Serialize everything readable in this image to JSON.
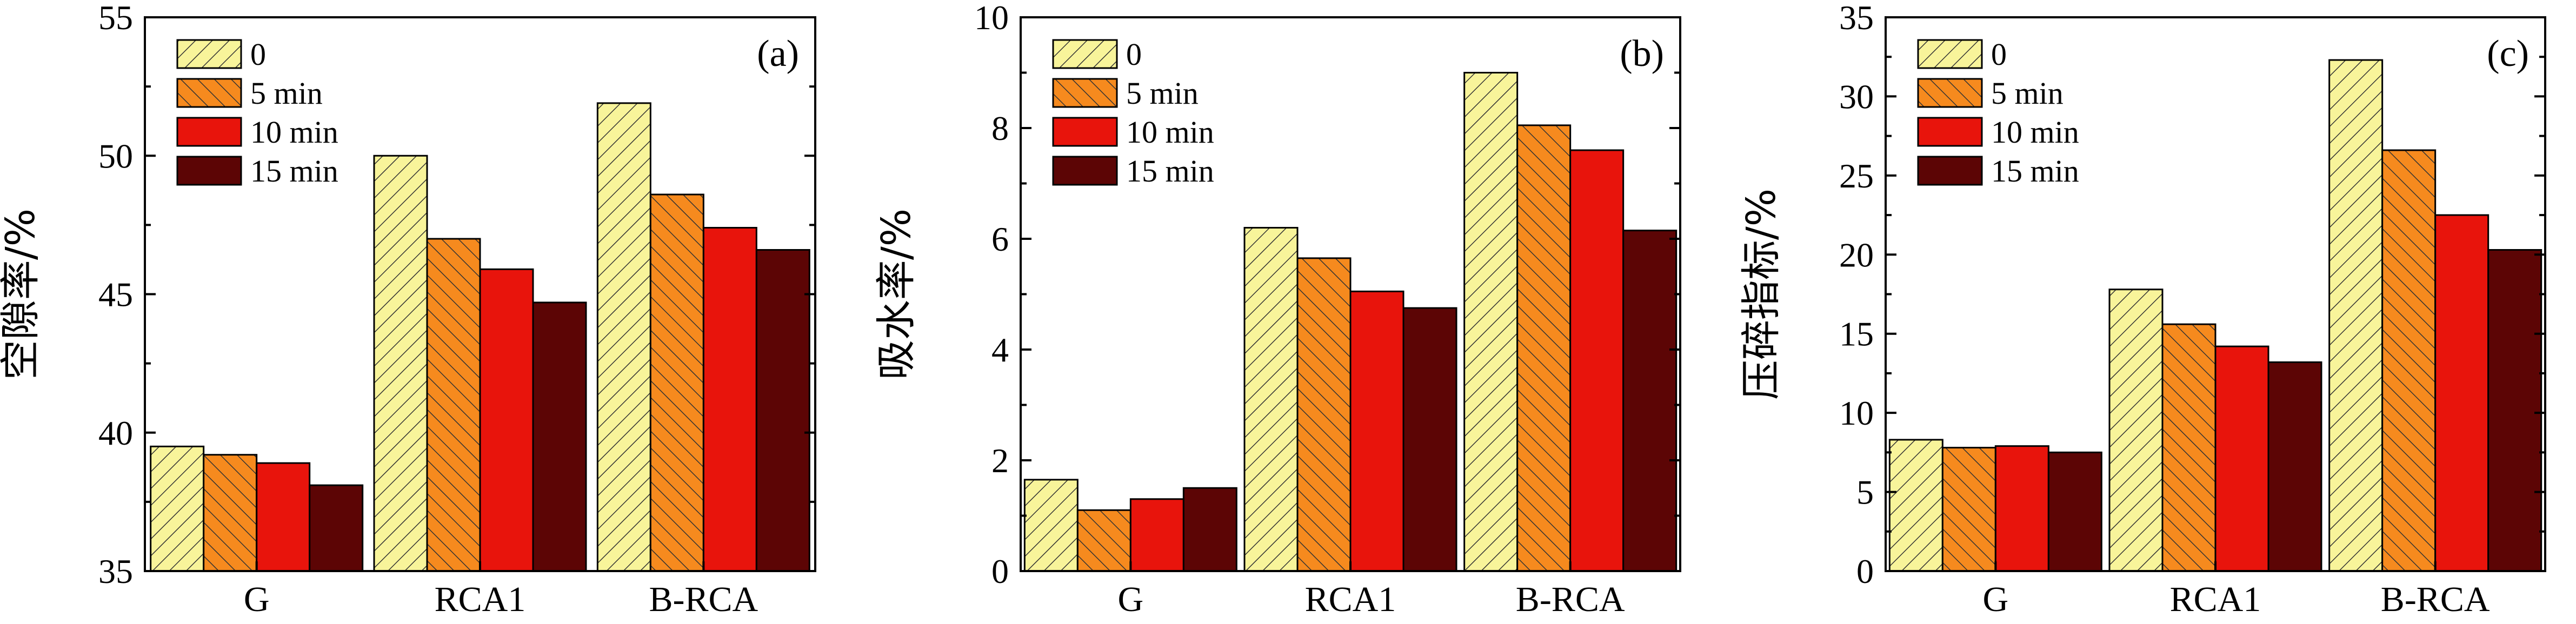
{
  "chart_data": [
    {
      "type": "bar",
      "panel_label": "(a)",
      "ylabel": "空隙率/%",
      "xlabel": "",
      "categories": [
        "G",
        "RCA1",
        "B-RCA"
      ],
      "ylim": [
        35,
        55
      ],
      "yticks": [
        35,
        40,
        45,
        50,
        55
      ],
      "series": [
        {
          "name": "0",
          "values": [
            39.5,
            50.0,
            51.9
          ]
        },
        {
          "name": "5 min",
          "values": [
            39.2,
            47.0,
            48.6
          ]
        },
        {
          "name": "10 min",
          "values": [
            38.9,
            45.9,
            47.4
          ]
        },
        {
          "name": "15 min",
          "values": [
            38.1,
            44.7,
            46.6
          ]
        }
      ],
      "legend_position": "top-left"
    },
    {
      "type": "bar",
      "panel_label": "(b)",
      "ylabel": "吸水率/%",
      "xlabel": "",
      "categories": [
        "G",
        "RCA1",
        "B-RCA"
      ],
      "ylim": [
        0,
        10
      ],
      "yticks": [
        0,
        2,
        4,
        6,
        8,
        10
      ],
      "series": [
        {
          "name": "0",
          "values": [
            1.65,
            6.2,
            9.0
          ]
        },
        {
          "name": "5 min",
          "values": [
            1.1,
            5.65,
            8.05
          ]
        },
        {
          "name": "10 min",
          "values": [
            1.3,
            5.05,
            7.6
          ]
        },
        {
          "name": "15 min",
          "values": [
            1.5,
            4.75,
            6.15
          ]
        }
      ],
      "legend_position": "top-left"
    },
    {
      "type": "bar",
      "panel_label": "(c)",
      "ylabel": "压碎指标/%",
      "xlabel": "",
      "categories": [
        "G",
        "RCA1",
        "B-RCA"
      ],
      "ylim": [
        0,
        35
      ],
      "yticks": [
        0,
        5,
        10,
        15,
        20,
        25,
        30,
        35
      ],
      "series": [
        {
          "name": "0",
          "values": [
            8.3,
            17.8,
            32.3
          ]
        },
        {
          "name": "5 min",
          "values": [
            7.8,
            15.6,
            26.6
          ]
        },
        {
          "name": "10 min",
          "values": [
            7.9,
            14.2,
            22.5
          ]
        },
        {
          "name": "15 min",
          "values": [
            7.5,
            13.2,
            20.3
          ]
        }
      ],
      "legend_position": "top-left"
    }
  ],
  "series_colors": [
    "#f8f49a",
    "#f68a1e",
    "#e8140c",
    "#5c0505"
  ]
}
